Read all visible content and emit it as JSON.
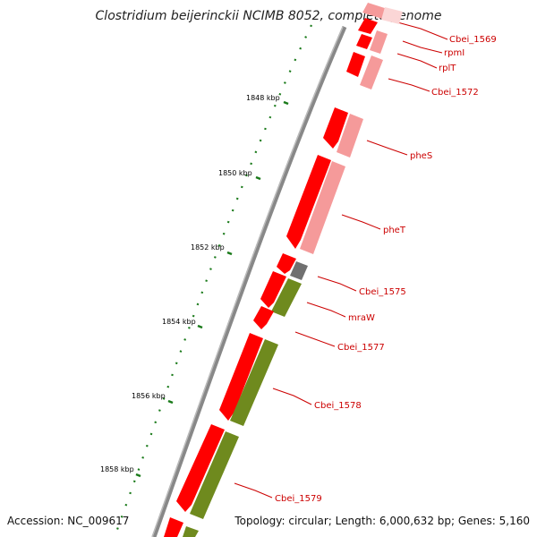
{
  "title": "Clostridium beijerinckii NCIMB 8052, complete genome",
  "footer": {
    "accession": "Accession: NC_009617",
    "topology": "Topology: circular; Length: 6,000,632 bp; Genes: 5,160"
  },
  "colors": {
    "forward_cds": "#ff0000",
    "forward_cds_light": "#f59a9a",
    "reverse_cds": "#6f8a1e",
    "rna": "#707070",
    "tick_dot": "#1a7a1a",
    "label": "#cc0000",
    "backbone": "#888888"
  },
  "ticks": [
    "1848 kbp",
    "1850 kbp",
    "1852 kbp",
    "1854 kbp",
    "1856 kbp",
    "1858 kbp"
  ],
  "gene_labels": [
    "Cbei_1569",
    "rpmI",
    "rplT",
    "Cbei_1572",
    "pheS",
    "pheT",
    "Cbei_1575",
    "mraW",
    "Cbei_1577",
    "Cbei_1578",
    "Cbei_1579"
  ]
}
